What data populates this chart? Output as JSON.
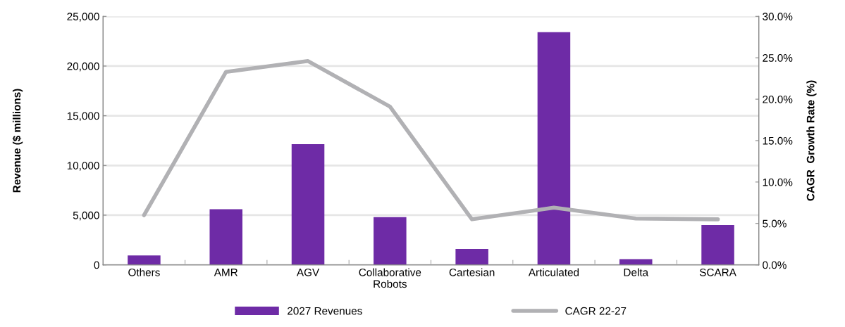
{
  "chart_data": {
    "type": "bar",
    "ylabel": "Revenue ($ millions)",
    "y2label": "CAGR  Growth Rate (%)",
    "categories": [
      "Others",
      "AMR",
      "AGV",
      "Collaborative\nRobots",
      "Cartesian",
      "Articulated",
      "Delta",
      "SCARA"
    ],
    "series": [
      {
        "name": "2027 Revenues",
        "color": "#6e2ba6",
        "values": [
          950,
          5600,
          12150,
          4800,
          1600,
          23400,
          570,
          4000
        ]
      },
      {
        "name": "CAGR 22-27",
        "type": "line",
        "axis": "y2",
        "color": "#b1b1b4",
        "values": [
          6.0,
          23.3,
          24.6,
          19.1,
          5.5,
          6.9,
          5.6,
          5.5
        ]
      }
    ],
    "ylim": [
      0,
      25000
    ],
    "yticks": [
      {
        "value": 0,
        "label": "0"
      },
      {
        "value": 5000,
        "label": "5,000"
      },
      {
        "value": 10000,
        "label": "10,000"
      },
      {
        "value": 15000,
        "label": "15,000"
      },
      {
        "value": 20000,
        "label": "20,000"
      },
      {
        "value": 25000,
        "label": "25,000"
      }
    ],
    "y2lim": [
      0,
      30
    ],
    "y2ticks": [
      {
        "value": 0,
        "label": "0.0%"
      },
      {
        "value": 5,
        "label": "5.0%"
      },
      {
        "value": 10,
        "label": "10.0%"
      },
      {
        "value": 15,
        "label": "15.0%"
      },
      {
        "value": 20,
        "label": "20.0%"
      },
      {
        "value": 25,
        "label": "25.0%"
      },
      {
        "value": 30,
        "label": "30.0%"
      }
    ],
    "grid": "y",
    "legend": "bottom",
    "marker": "none",
    "line_style": "solid"
  }
}
